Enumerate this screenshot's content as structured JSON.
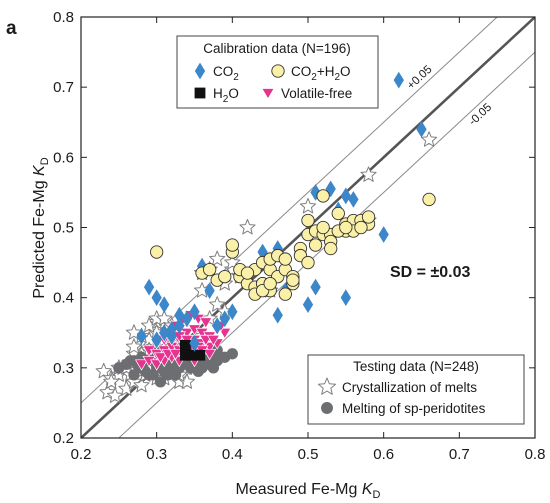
{
  "chart_data": {
    "type": "scatter",
    "panel_label": "a",
    "xlabel": "Measured Fe-Mg K_D",
    "ylabel": "Predicted Fe-Mg K_D",
    "xlabel_prefix": "Measured Fe-Mg ",
    "ylabel_prefix": "Predicted Fe-Mg ",
    "label_italic": "K",
    "label_sub": "D",
    "xlim": [
      0.2,
      0.8
    ],
    "ylim": [
      0.2,
      0.8
    ],
    "xticks": [
      0.2,
      0.3,
      0.4,
      0.5,
      0.6,
      0.7,
      0.8
    ],
    "yticks": [
      0.2,
      0.3,
      0.4,
      0.5,
      0.6,
      0.7,
      0.8
    ],
    "tick_labels": [
      "0.2",
      "0.3",
      "0.4",
      "0.5",
      "0.6",
      "0.7",
      "0.8"
    ],
    "grid": false,
    "stat_text": "SD = ±0.03",
    "reference_lines": [
      {
        "name": "1:1",
        "offset": 0.0
      },
      {
        "name": "+0.05",
        "label": "+0.05",
        "offset": 0.05
      },
      {
        "name": "-0.05",
        "label": "-0.05",
        "offset": -0.05
      }
    ],
    "calibration_legend": {
      "title": "Calibration data (N=196)",
      "placement": "top-left",
      "entries": [
        {
          "series": "CO2",
          "label_main": "CO",
          "label_sub": "2"
        },
        {
          "series": "CO2+H2O",
          "label_main": "CO",
          "label_sub": "2",
          "label_tail": "+H",
          "label_sub2": "2",
          "label_end": "O"
        },
        {
          "series": "H2O",
          "label_main": "H",
          "label_sub": "2",
          "label_tail": "O"
        },
        {
          "series": "Volatile-free",
          "label_main": "Volatile-free"
        }
      ]
    },
    "testing_legend": {
      "title": "Testing data (N=248)",
      "placement": "bottom-right",
      "entries": [
        {
          "series": "Crystallization of melts",
          "label_main": "Crystallization of melts"
        },
        {
          "series": "Melting of sp-peridotites",
          "label_main": "Melting of sp-peridotites"
        }
      ]
    },
    "series": [
      {
        "name": "Crystallization of melts",
        "marker": "star",
        "color": "#ffffff",
        "stroke": "#7f7f7f",
        "x": [
          0.23,
          0.235,
          0.24,
          0.245,
          0.25,
          0.255,
          0.26,
          0.265,
          0.27,
          0.27,
          0.275,
          0.28,
          0.28,
          0.285,
          0.29,
          0.29,
          0.295,
          0.3,
          0.3,
          0.305,
          0.31,
          0.31,
          0.315,
          0.32,
          0.32,
          0.325,
          0.33,
          0.3,
          0.31,
          0.29,
          0.28,
          0.27,
          0.26,
          0.34,
          0.35,
          0.36,
          0.37,
          0.38,
          0.39,
          0.4,
          0.41,
          0.33,
          0.32,
          0.31,
          0.3,
          0.29,
          0.3,
          0.31,
          0.32,
          0.28,
          0.27,
          0.25,
          0.24,
          0.36,
          0.37,
          0.39,
          0.45,
          0.5,
          0.58,
          0.58,
          0.66,
          0.36,
          0.38,
          0.4,
          0.42,
          0.35,
          0.34,
          0.33,
          0.31,
          0.29,
          0.27
        ],
        "y": [
          0.295,
          0.265,
          0.285,
          0.26,
          0.29,
          0.3,
          0.27,
          0.29,
          0.28,
          0.31,
          0.3,
          0.275,
          0.32,
          0.29,
          0.3,
          0.34,
          0.32,
          0.285,
          0.365,
          0.31,
          0.305,
          0.35,
          0.32,
          0.3,
          0.34,
          0.33,
          0.31,
          0.32,
          0.285,
          0.31,
          0.295,
          0.32,
          0.3,
          0.3,
          0.33,
          0.345,
          0.37,
          0.39,
          0.42,
          0.44,
          0.43,
          0.28,
          0.33,
          0.34,
          0.35,
          0.36,
          0.37,
          0.37,
          0.36,
          0.345,
          0.33,
          0.3,
          0.28,
          0.435,
          0.44,
          0.38,
          0.41,
          0.53,
          0.51,
          0.575,
          0.625,
          0.41,
          0.455,
          0.45,
          0.5,
          0.3,
          0.28,
          0.29,
          0.315,
          0.325,
          0.35
        ]
      },
      {
        "name": "Melting of sp-peridotites",
        "marker": "circle",
        "color": "#6d6e71",
        "stroke": "#6d6e71",
        "x": [
          0.25,
          0.26,
          0.27,
          0.27,
          0.28,
          0.28,
          0.29,
          0.29,
          0.3,
          0.3,
          0.3,
          0.31,
          0.31,
          0.31,
          0.32,
          0.32,
          0.32,
          0.33,
          0.33,
          0.33,
          0.34,
          0.34,
          0.35,
          0.35,
          0.36,
          0.36,
          0.37,
          0.37,
          0.38,
          0.38,
          0.39,
          0.4,
          0.295,
          0.305,
          0.315,
          0.325,
          0.335,
          0.285,
          0.275,
          0.345,
          0.355,
          0.365,
          0.375,
          0.265,
          0.305,
          0.315,
          0.325
        ],
        "y": [
          0.3,
          0.305,
          0.29,
          0.31,
          0.3,
          0.315,
          0.29,
          0.31,
          0.3,
          0.315,
          0.325,
          0.295,
          0.31,
          0.32,
          0.3,
          0.315,
          0.33,
          0.3,
          0.31,
          0.32,
          0.305,
          0.315,
          0.31,
          0.325,
          0.3,
          0.315,
          0.305,
          0.32,
          0.31,
          0.325,
          0.315,
          0.32,
          0.29,
          0.305,
          0.3,
          0.31,
          0.32,
          0.295,
          0.305,
          0.3,
          0.295,
          0.31,
          0.3,
          0.31,
          0.28,
          0.29,
          0.29
        ]
      },
      {
        "name": "Volatile-free",
        "marker": "triangle-down",
        "color": "#e6338f",
        "stroke": "#ffffff",
        "x": [
          0.28,
          0.29,
          0.29,
          0.3,
          0.3,
          0.3,
          0.31,
          0.31,
          0.31,
          0.32,
          0.32,
          0.32,
          0.33,
          0.33,
          0.33,
          0.33,
          0.34,
          0.34,
          0.34,
          0.34,
          0.35,
          0.35,
          0.35,
          0.35,
          0.36,
          0.36,
          0.36,
          0.37,
          0.37,
          0.38,
          0.38,
          0.39,
          0.305,
          0.315,
          0.325,
          0.335,
          0.345,
          0.355,
          0.365,
          0.375,
          0.385,
          0.325,
          0.335,
          0.345,
          0.355,
          0.365,
          0.31,
          0.32,
          0.33,
          0.34,
          0.36,
          0.37
        ],
        "y": [
          0.305,
          0.31,
          0.325,
          0.305,
          0.32,
          0.335,
          0.31,
          0.325,
          0.34,
          0.315,
          0.33,
          0.345,
          0.31,
          0.325,
          0.34,
          0.355,
          0.32,
          0.335,
          0.35,
          0.365,
          0.31,
          0.325,
          0.34,
          0.355,
          0.32,
          0.335,
          0.35,
          0.33,
          0.345,
          0.335,
          0.355,
          0.35,
          0.315,
          0.32,
          0.32,
          0.33,
          0.33,
          0.33,
          0.34,
          0.34,
          0.36,
          0.36,
          0.37,
          0.375,
          0.37,
          0.365,
          0.345,
          0.34,
          0.345,
          0.34,
          0.325,
          0.32
        ]
      },
      {
        "name": "H2O",
        "marker": "square",
        "color": "#111111",
        "stroke": "#111111",
        "x": [
          0.338,
          0.338,
          0.357,
          0.347
        ],
        "y": [
          0.332,
          0.318,
          0.318,
          0.318
        ]
      },
      {
        "name": "CO2",
        "marker": "diamond",
        "color": "#3b87c9",
        "stroke": "#3b87c9",
        "x": [
          0.29,
          0.3,
          0.31,
          0.31,
          0.32,
          0.33,
          0.34,
          0.35,
          0.36,
          0.37,
          0.38,
          0.39,
          0.4,
          0.44,
          0.45,
          0.46,
          0.47,
          0.5,
          0.51,
          0.53,
          0.54,
          0.55,
          0.56,
          0.6,
          0.62,
          0.65,
          0.3,
          0.32,
          0.35,
          0.28,
          0.51,
          0.55,
          0.46,
          0.33
        ],
        "y": [
          0.415,
          0.4,
          0.39,
          0.35,
          0.345,
          0.36,
          0.37,
          0.38,
          0.445,
          0.41,
          0.36,
          0.37,
          0.38,
          0.465,
          0.445,
          0.375,
          0.41,
          0.39,
          0.55,
          0.555,
          0.525,
          0.545,
          0.54,
          0.49,
          0.71,
          0.64,
          0.34,
          0.355,
          0.335,
          0.345,
          0.415,
          0.4,
          0.47,
          0.375
        ]
      },
      {
        "name": "CO2+H2O",
        "marker": "circle",
        "color": "#fbf0a7",
        "stroke": "#333333",
        "x": [
          0.3,
          0.36,
          0.37,
          0.38,
          0.39,
          0.4,
          0.4,
          0.41,
          0.42,
          0.43,
          0.43,
          0.44,
          0.44,
          0.45,
          0.45,
          0.46,
          0.46,
          0.47,
          0.47,
          0.48,
          0.48,
          0.49,
          0.5,
          0.5,
          0.51,
          0.51,
          0.52,
          0.52,
          0.53,
          0.53,
          0.54,
          0.55,
          0.55,
          0.56,
          0.56,
          0.57,
          0.58,
          0.58,
          0.66,
          0.41,
          0.42,
          0.44,
          0.45,
          0.47,
          0.49,
          0.52,
          0.54,
          0.53,
          0.43,
          0.44,
          0.45,
          0.48,
          0.5,
          0.55,
          0.57
        ],
        "y": [
          0.465,
          0.435,
          0.44,
          0.425,
          0.43,
          0.465,
          0.475,
          0.43,
          0.42,
          0.415,
          0.44,
          0.45,
          0.42,
          0.44,
          0.455,
          0.46,
          0.43,
          0.44,
          0.455,
          0.42,
          0.43,
          0.47,
          0.49,
          0.51,
          0.495,
          0.475,
          0.545,
          0.49,
          0.49,
          0.48,
          0.52,
          0.495,
          0.505,
          0.51,
          0.495,
          0.51,
          0.505,
          0.515,
          0.54,
          0.44,
          0.435,
          0.42,
          0.41,
          0.405,
          0.46,
          0.5,
          0.495,
          0.47,
          0.405,
          0.41,
          0.42,
          0.425,
          0.45,
          0.5,
          0.5
        ]
      }
    ]
  }
}
